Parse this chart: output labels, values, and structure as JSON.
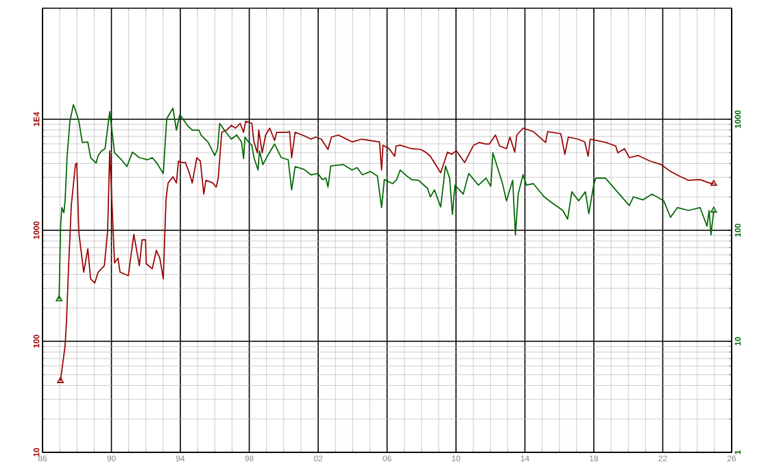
{
  "chart_data": [
    {
      "type": "line",
      "log": true,
      "grid": true,
      "line_style": "solid",
      "xlim": [
        1986,
        2026
      ],
      "xticks": [
        {
          "value": 1986,
          "label": "86"
        },
        {
          "value": 1990,
          "label": "90"
        },
        {
          "value": 1994,
          "label": "94"
        },
        {
          "value": 1998,
          "label": "98"
        },
        {
          "value": 2002,
          "label": "02"
        },
        {
          "value": 2006,
          "label": "06"
        },
        {
          "value": 2010,
          "label": "10"
        },
        {
          "value": 2014,
          "label": "14"
        },
        {
          "value": 2018,
          "label": "18"
        },
        {
          "value": 2022,
          "label": "22"
        },
        {
          "value": 2026,
          "label": "26"
        }
      ],
      "ylim": [
        10,
        100000
      ],
      "yticks": [
        10,
        100,
        1000,
        {
          "value": 10000,
          "label": "1E4"
        }
      ],
      "series": [
        {
          "color": "#990000",
          "x": [
            1987.04,
            1987.31,
            1987.39,
            1987.51,
            1987.67,
            1987.91,
            1987.99,
            1988.11,
            1988.39,
            1988.63,
            1988.79,
            1989.03,
            1989.23,
            1989.59,
            1989.78,
            1989.9,
            1990.18,
            1990.38,
            1990.5,
            1990.98,
            1991.3,
            1991.62,
            1991.78,
            1991.98,
            1992.02,
            1992.37,
            1992.61,
            1992.81,
            1993.01,
            1993.17,
            1993.29,
            1993.57,
            1993.77,
            1993.89,
            1994.01,
            1994.29,
            1994.49,
            1994.69,
            1994.96,
            1995.16,
            1995.36,
            1995.48,
            1995.88,
            1996.08,
            1996.2,
            1996.4,
            1996.68,
            1996.96,
            1997.2,
            1997.47,
            1997.67,
            1997.79,
            1998.15,
            1998.27,
            1998.47,
            1998.55,
            1998.75,
            1998.95,
            1999.19,
            1999.47,
            1999.59,
            2000.14,
            2000.34,
            2000.46,
            2000.66,
            2001.18,
            2001.58,
            2001.86,
            2002.18,
            2002.57,
            2002.77,
            2003.17,
            2003.97,
            2004.53,
            2005.56,
            2005.68,
            2005.76,
            2006.12,
            2006.44,
            2006.52,
            2006.76,
            2007.43,
            2007.95,
            2008.23,
            2008.51,
            2009.11,
            2009.51,
            2009.75,
            2010.02,
            2010.5,
            2011.02,
            2011.34,
            2011.74,
            2011.94,
            2012.29,
            2012.53,
            2012.93,
            2013.13,
            2013.41,
            2013.53,
            2013.89,
            2014.49,
            2015.2,
            2015.32,
            2016.08,
            2016.32,
            2016.52,
            2017.08,
            2017.47,
            2017.67,
            2017.79,
            2018.71,
            2019.27,
            2019.39,
            2019.78,
            2020.06,
            2020.58,
            2021.26,
            2021.9,
            2022.45,
            2022.97,
            2023.49,
            2024.17,
            2024.69,
            2024.96
          ],
          "values": [
            44,
            91,
            149,
            460,
            1670,
            3910,
            4030,
            945,
            420,
            680,
            365,
            335,
            420,
            480,
            990,
            5200,
            510,
            560,
            420,
            390,
            920,
            480,
            820,
            820,
            500,
            450,
            660,
            560,
            365,
            1920,
            2670,
            3030,
            2670,
            4200,
            4080,
            4080,
            3390,
            2670,
            4510,
            4200,
            2120,
            2820,
            2670,
            2450,
            2940,
            7630,
            7970,
            8790,
            8310,
            9180,
            7630,
            9580,
            9180,
            6250,
            4990,
            7970,
            4990,
            7210,
            8310,
            6440,
            7630,
            7630,
            7740,
            4510,
            7630,
            7110,
            6620,
            6910,
            6620,
            5350,
            6910,
            7210,
            6250,
            6620,
            6250,
            3490,
            5830,
            5430,
            4640,
            5740,
            5830,
            5430,
            5350,
            5060,
            4640,
            3300,
            5060,
            4840,
            5200,
            4080,
            5830,
            6170,
            5990,
            5990,
            7210,
            5740,
            5430,
            6910,
            5060,
            7210,
            8310,
            7740,
            6170,
            7740,
            7420,
            4840,
            6910,
            6620,
            6250,
            4640,
            6620,
            6170,
            5740,
            4990,
            5430,
            4510,
            4710,
            4200,
            3910,
            3390,
            3070,
            2820,
            2860,
            2670,
            2630
          ]
        },
        {
          "type": "scatter",
          "marker": "triangle",
          "color": "#990000",
          "x": [
            1987.04,
            2024.96
          ],
          "values": [
            44,
            2630
          ]
        }
      ]
    },
    {
      "type": "line",
      "log": true,
      "line_style": "solid",
      "tick_labels": "y",
      "xlim": [
        1986,
        2026
      ],
      "ylim": [
        1,
        10000
      ],
      "yticks": [
        1,
        10,
        100,
        1000
      ],
      "series": [
        {
          "color": "#006600",
          "x": [
            1986.96,
            1987.05,
            1987.12,
            1987.24,
            1987.31,
            1987.43,
            1987.59,
            1987.79,
            1987.91,
            1988.11,
            1988.31,
            1988.63,
            1988.79,
            1989.11,
            1989.23,
            1989.43,
            1989.63,
            1989.9,
            1990.18,
            1990.58,
            1990.9,
            1991.22,
            1991.62,
            1992.1,
            1992.37,
            1992.61,
            1993.01,
            1993.21,
            1993.57,
            1993.77,
            1993.97,
            1994.41,
            1994.69,
            1995.08,
            1995.2,
            1995.4,
            1995.6,
            1996.0,
            1996.16,
            1996.28,
            1996.56,
            1996.96,
            1997.27,
            1997.55,
            1997.67,
            1997.75,
            1997.95,
            1998.15,
            1998.27,
            1998.51,
            1998.59,
            1998.79,
            1999.07,
            1999.47,
            1999.86,
            2000.26,
            2000.46,
            2000.66,
            2001.18,
            2001.58,
            2001.98,
            2002.25,
            2002.45,
            2002.57,
            2002.73,
            2003.45,
            2003.97,
            2004.25,
            2004.57,
            2005.04,
            2005.44,
            2005.68,
            2005.84,
            2006.32,
            2006.56,
            2006.76,
            2007.16,
            2007.43,
            2007.83,
            2008.35,
            2008.51,
            2008.75,
            2009.11,
            2009.39,
            2009.63,
            2009.79,
            2009.94,
            2010.42,
            2010.74,
            2011.3,
            2011.74,
            2012.02,
            2012.14,
            2012.69,
            2012.93,
            2013.29,
            2013.45,
            2013.61,
            2013.89,
            2014.09,
            2014.49,
            2015.12,
            2015.52,
            2016.2,
            2016.48,
            2016.72,
            2017.12,
            2017.51,
            2017.71,
            2017.99,
            2018.11,
            2018.67,
            2019.27,
            2020.06,
            2020.3,
            2020.86,
            2021.38,
            2022.06,
            2022.45,
            2022.85,
            2023.49,
            2024.17,
            2024.57,
            2024.69,
            2024.8,
            2024.96
          ],
          "values": [
            24,
            109,
            160,
            144,
            184,
            471,
            958,
            1349,
            1210,
            958,
            617,
            625,
            451,
            403,
            471,
            520,
            543,
            1170,
            499,
            432,
            375,
            506,
            451,
            432,
            451,
            408,
            325,
            1014,
            1256,
            797,
            1104,
            879,
            797,
            797,
            721,
            671,
            625,
            471,
            543,
            918,
            797,
            662,
            721,
            625,
            442,
            691,
            625,
            583,
            451,
            349,
            520,
            391,
            471,
            599,
            451,
            432,
            231,
            375,
            354,
            316,
            325,
            286,
            295,
            245,
            380,
            391,
            349,
            367,
            316,
            339,
            307,
            160,
            286,
            263,
            286,
            349,
            307,
            286,
            282,
            238,
            200,
            231,
            162,
            380,
            295,
            139,
            255,
            212,
            325,
            255,
            295,
            249,
            499,
            267,
            184,
            282,
            91,
            212,
            316,
            255,
            263,
            200,
            179,
            151,
            126,
            222,
            184,
            222,
            141,
            255,
            295,
            295,
            231,
            167,
            200,
            188,
            212,
            184,
            131,
            160,
            151,
            160,
            109,
            151,
            91,
            151
          ]
        },
        {
          "type": "scatter",
          "marker": "triangle",
          "color": "#006600",
          "x": [
            1986.96,
            2024.96
          ],
          "values": [
            24,
            151
          ]
        }
      ]
    }
  ]
}
